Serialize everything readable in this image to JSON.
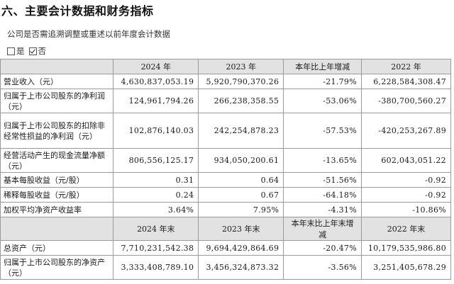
{
  "section_title": "六、主要会计数据和财务指标",
  "question": "公司是否需追溯调整或重述以前年度会计数据",
  "choices": [
    {
      "label": "是",
      "checked": false
    },
    {
      "label": "否",
      "checked": true
    }
  ],
  "table1": {
    "headers": [
      "",
      "2024 年",
      "2023 年",
      "本年比上年增减",
      "2022 年"
    ],
    "rows": [
      {
        "label": "营业收入（元）",
        "cells": [
          "4,630,837,053.19",
          "5,920,790,370.26",
          "-21.79%",
          "6,228,584,308.47"
        ]
      },
      {
        "label": "归属于上市公司股东的净利润（元）",
        "cells": [
          "124,961,794.26",
          "266,238,358.55",
          "-53.06%",
          "-380,700,560.27"
        ]
      },
      {
        "label": "归属于上市公司股东的扣除非经常性损益的净利润（元）",
        "cells": [
          "102,876,140.03",
          "242,254,878.23",
          "-57.53%",
          "-420,253,267.89"
        ]
      },
      {
        "label": "经营活动产生的现金流量净额（元）",
        "cells": [
          "806,556,125.17",
          "934,050,200.61",
          "-13.65%",
          "602,043,051.22"
        ]
      },
      {
        "label": "基本每股收益（元/股）",
        "cells": [
          "0.31",
          "0.64",
          "-51.56%",
          "-0.92"
        ]
      },
      {
        "label": "稀释每股收益（元/股）",
        "cells": [
          "0.24",
          "0.67",
          "-64.18%",
          "-0.92"
        ]
      },
      {
        "label": "加权平均净资产收益率",
        "cells": [
          "3.64%",
          "7.95%",
          "-4.31%",
          "-10.86%"
        ]
      }
    ]
  },
  "table2": {
    "headers": [
      "",
      "2024 年末",
      "2023 年末",
      "本年末比上年末增减",
      "2022 年末"
    ],
    "rows": [
      {
        "label": "总资产（元）",
        "cells": [
          "7,710,231,542.38",
          "9,694,429,864.69",
          "-20.47%",
          "10,179,535,986.80"
        ]
      },
      {
        "label": "归属于上市公司股东的净资产（元）",
        "cells": [
          "3,333,408,789.10",
          "3,456,324,873.32",
          "-3.56%",
          "3,251,405,678.29"
        ]
      }
    ]
  }
}
